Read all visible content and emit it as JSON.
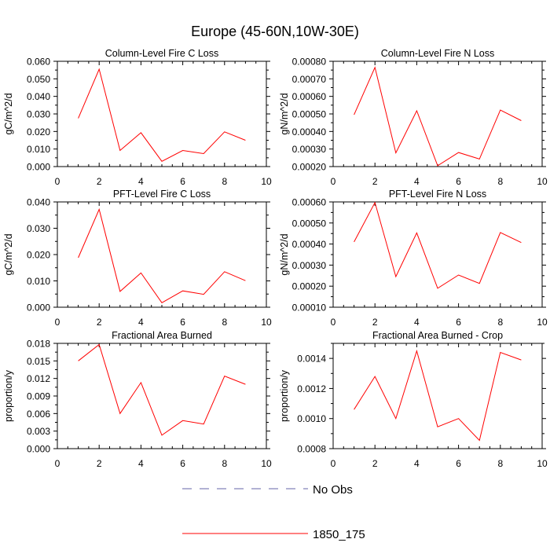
{
  "title": "Europe (45-60N,10W-30E)",
  "colors": {
    "series": "#ff0000",
    "obs": "#6666aa",
    "axis": "#000000"
  },
  "legend": [
    {
      "label": "No Obs",
      "style": "dashed",
      "color": "#6666aa"
    },
    {
      "label": "1850_175",
      "style": "solid",
      "color": "#ff0000"
    }
  ],
  "chart_data": [
    {
      "type": "line",
      "title": "Column-Level Fire C Loss",
      "ylabel": "gC/m^2/d",
      "xlim": [
        0,
        10
      ],
      "ylim": [
        0,
        0.06
      ],
      "xticks": [
        "0",
        "2",
        "4",
        "6",
        "8",
        "10"
      ],
      "yticks": [
        "0.000",
        "0.010",
        "0.020",
        "0.030",
        "0.040",
        "0.050",
        "0.060"
      ],
      "x": [
        1,
        2,
        3,
        4,
        5,
        6,
        7,
        8,
        9
      ],
      "series": [
        {
          "name": "1850_175",
          "values": [
            0.0275,
            0.0555,
            0.0092,
            0.0193,
            0.003,
            0.0092,
            0.0074,
            0.0198,
            0.015
          ]
        }
      ]
    },
    {
      "type": "line",
      "title": "Column-Level Fire N Loss",
      "ylabel": "gN/m^2/d",
      "xlim": [
        0,
        10
      ],
      "ylim": [
        0.0002,
        0.0008
      ],
      "xticks": [
        "0",
        "2",
        "4",
        "6",
        "8",
        "10"
      ],
      "yticks": [
        "0.00020",
        "0.00030",
        "0.00040",
        "0.00050",
        "0.00060",
        "0.00070",
        "0.00080"
      ],
      "x": [
        1,
        2,
        3,
        4,
        5,
        6,
        7,
        8,
        9
      ],
      "series": [
        {
          "name": "1850_175",
          "values": [
            0.000495,
            0.000765,
            0.000278,
            0.000518,
            0.000205,
            0.00028,
            0.000243,
            0.000522,
            0.000462
          ]
        }
      ]
    },
    {
      "type": "line",
      "title": "PFT-Level Fire C Loss",
      "ylabel": "gC/m^2/d",
      "xlim": [
        0,
        10
      ],
      "ylim": [
        0,
        0.04
      ],
      "xticks": [
        "0",
        "2",
        "4",
        "6",
        "8",
        "10"
      ],
      "yticks": [
        "0.000",
        "0.010",
        "0.020",
        "0.030",
        "0.040"
      ],
      "x": [
        1,
        2,
        3,
        4,
        5,
        6,
        7,
        8,
        9
      ],
      "series": [
        {
          "name": "1850_175",
          "values": [
            0.0188,
            0.0372,
            0.006,
            0.013,
            0.0017,
            0.0062,
            0.0049,
            0.0135,
            0.0101
          ]
        }
      ]
    },
    {
      "type": "line",
      "title": "PFT-Level Fire N Loss",
      "ylabel": "gN/m^2/d",
      "xlim": [
        0,
        10
      ],
      "ylim": [
        0.0001,
        0.0006
      ],
      "xticks": [
        "0",
        "2",
        "4",
        "6",
        "8",
        "10"
      ],
      "yticks": [
        "0.00010",
        "0.00020",
        "0.00030",
        "0.00040",
        "0.00050",
        "0.00060"
      ],
      "x": [
        1,
        2,
        3,
        4,
        5,
        6,
        7,
        8,
        9
      ],
      "series": [
        {
          "name": "1850_175",
          "values": [
            0.00041,
            0.000597,
            0.000245,
            0.000453,
            0.00019,
            0.000253,
            0.000213,
            0.000455,
            0.000407
          ]
        }
      ]
    },
    {
      "type": "line",
      "title": "Fractional Area Burned",
      "ylabel": "proportion/y",
      "xlim": [
        0,
        10
      ],
      "ylim": [
        0,
        0.018
      ],
      "xticks": [
        "0",
        "2",
        "4",
        "6",
        "8",
        "10"
      ],
      "yticks": [
        "0.000",
        "0.003",
        "0.006",
        "0.009",
        "0.012",
        "0.015",
        "0.018"
      ],
      "x": [
        1,
        2,
        3,
        4,
        5,
        6,
        7,
        8,
        9
      ],
      "series": [
        {
          "name": "1850_175",
          "values": [
            0.015,
            0.0178,
            0.006,
            0.0113,
            0.0023,
            0.0048,
            0.0042,
            0.0124,
            0.011
          ]
        }
      ]
    },
    {
      "type": "line",
      "title": "Fractional Area Burned - Crop",
      "ylabel": "proportion/y",
      "xlim": [
        0,
        10
      ],
      "ylim": [
        0.0008,
        0.0015
      ],
      "xticks": [
        "0",
        "2",
        "4",
        "6",
        "8",
        "10"
      ],
      "yticks": [
        "0.0008",
        "0.0010",
        "0.0012",
        "0.0014"
      ],
      "yticks_values": [
        0.0008,
        0.001,
        0.0012,
        0.0014
      ],
      "x": [
        1,
        2,
        3,
        4,
        5,
        6,
        7,
        8,
        9
      ],
      "series": [
        {
          "name": "1850_175",
          "values": [
            0.00106,
            0.00128,
            0.001,
            0.00145,
            0.000945,
            0.001,
            0.000855,
            0.00144,
            0.00139
          ]
        }
      ]
    }
  ]
}
